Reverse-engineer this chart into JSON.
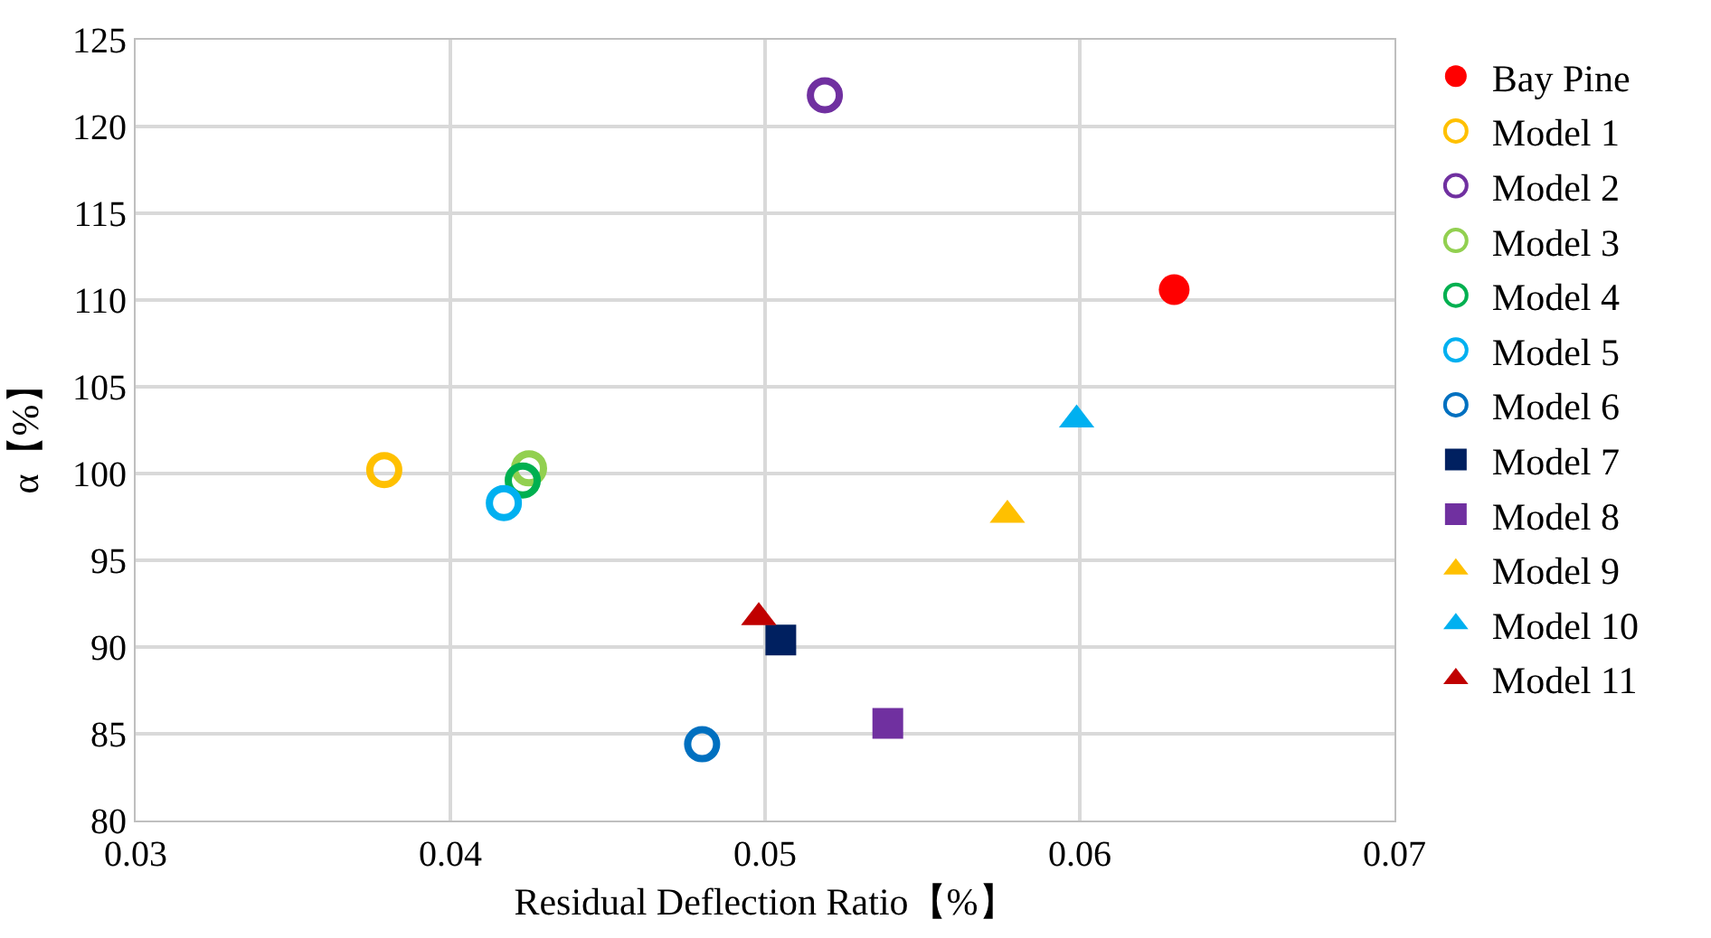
{
  "chart_data": {
    "type": "scatter",
    "xlabel": "Residual Deflection Ratio【%】",
    "ylabel": "α【%】",
    "xlim": [
      0.03,
      0.07
    ],
    "xticks": [
      {
        "value": 0.03,
        "label": "0.03"
      },
      {
        "value": 0.04,
        "label": "0.04"
      },
      {
        "value": 0.05,
        "label": "0.05"
      },
      {
        "value": 0.06,
        "label": "0.06"
      },
      {
        "value": 0.07,
        "label": "0.07"
      }
    ],
    "ylim": [
      80,
      125
    ],
    "yticks": [
      80,
      85,
      90,
      95,
      100,
      105,
      110,
      115,
      120,
      125
    ],
    "grid": true,
    "legend": "right",
    "series": [
      {
        "name": "Bay Pine",
        "color": "#ff0000",
        "marker": "circle",
        "x": [
          0.063
        ],
        "values": [
          110.6
        ]
      },
      {
        "name": "Model 1",
        "color": "#ffc000",
        "marker": "circle-open",
        "x": [
          0.0379
        ],
        "values": [
          100.2
        ]
      },
      {
        "name": "Model 2",
        "color": "#7030a0",
        "marker": "circle-open",
        "x": [
          0.0519
        ],
        "values": [
          121.8
        ]
      },
      {
        "name": "Model 3",
        "color": "#92d050",
        "marker": "circle-open",
        "x": [
          0.0425
        ],
        "values": [
          100.3
        ]
      },
      {
        "name": "Model 4",
        "color": "#00b050",
        "marker": "circle-open",
        "x": [
          0.0423
        ],
        "values": [
          99.6
        ]
      },
      {
        "name": "Model 5",
        "color": "#00b0f0",
        "marker": "circle-open",
        "x": [
          0.0417
        ],
        "values": [
          98.3
        ]
      },
      {
        "name": "Model 6",
        "color": "#0070c0",
        "marker": "circle-open",
        "x": [
          0.048
        ],
        "values": [
          84.4
        ]
      },
      {
        "name": "Model 7",
        "color": "#002060",
        "marker": "square",
        "x": [
          0.0505
        ],
        "values": [
          90.4
        ]
      },
      {
        "name": "Model 8",
        "color": "#7030a0",
        "marker": "square",
        "x": [
          0.0539
        ],
        "values": [
          85.6
        ]
      },
      {
        "name": "Model 9",
        "color": "#ffc000",
        "marker": "triangle",
        "x": [
          0.0577
        ],
        "values": [
          97.6
        ]
      },
      {
        "name": "Model 10",
        "color": "#00b0f0",
        "marker": "triangle",
        "x": [
          0.0599
        ],
        "values": [
          103.1
        ]
      },
      {
        "name": "Model 11",
        "color": "#c00000",
        "marker": "triangle",
        "x": [
          0.0498
        ],
        "values": [
          91.7
        ]
      }
    ]
  }
}
